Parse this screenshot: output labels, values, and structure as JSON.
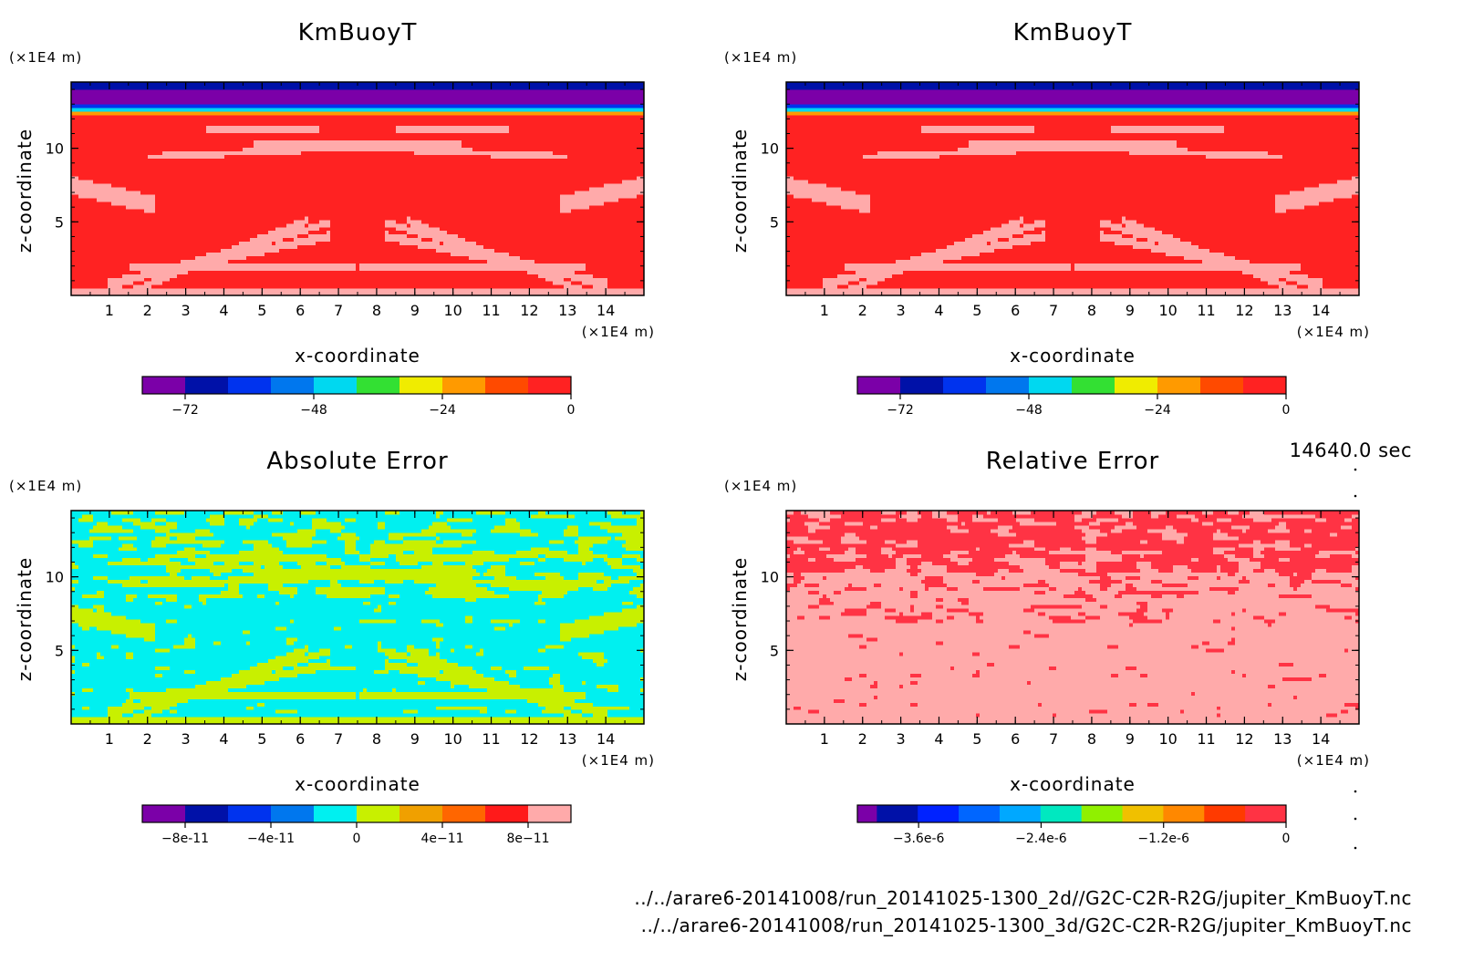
{
  "timestamp": "14640.0 sec",
  "files": [
    "../../arare6-20141008/run_20141025-1300_2d//G2C-C2R-R2G/jupiter_KmBuoyT.nc",
    "../../arare6-20141008/run_20141025-1300_3d/G2C-C2R-R2G/jupiter_KmBuoyT.nc"
  ],
  "chart_data": [
    {
      "type": "heatmap",
      "title": "KmBuoyT",
      "xlabel": "x-coordinate",
      "ylabel": "z-coordinate",
      "x_unit": "(×1E4 m)",
      "y_unit": "(×1E4 m)",
      "xlim": [
        0,
        15
      ],
      "ylim": [
        0,
        14.5
      ],
      "x_ticks": [
        "1",
        "2",
        "3",
        "4",
        "5",
        "6",
        "7",
        "8",
        "9",
        "10",
        "11",
        "12",
        "13",
        "14"
      ],
      "y_ticks": [
        "5",
        "10"
      ],
      "colorbar": {
        "colors": [
          "#7b00a8",
          "#0011a8",
          "#0033ee",
          "#0077ee",
          "#00d8f0",
          "#33e033",
          "#f0ec00",
          "#ff9a00",
          "#ff4a00",
          "#ff2222"
        ],
        "tick_labels": [
          "-72",
          "-48",
          "-24",
          "0"
        ],
        "range": [
          -80,
          0
        ]
      },
      "field": "kmbuoy"
    },
    {
      "type": "heatmap",
      "title": "KmBuoyT",
      "xlabel": "x-coordinate",
      "ylabel": "z-coordinate",
      "x_unit": "(×1E4 m)",
      "y_unit": "(×1E4 m)",
      "xlim": [
        0,
        15
      ],
      "ylim": [
        0,
        14.5
      ],
      "x_ticks": [
        "1",
        "2",
        "3",
        "4",
        "5",
        "6",
        "7",
        "8",
        "9",
        "10",
        "11",
        "12",
        "13",
        "14"
      ],
      "y_ticks": [
        "5",
        "10"
      ],
      "colorbar": {
        "colors": [
          "#7b00a8",
          "#0011a8",
          "#0033ee",
          "#0077ee",
          "#00d8f0",
          "#33e033",
          "#f0ec00",
          "#ff9a00",
          "#ff4a00",
          "#ff2222"
        ],
        "tick_labels": [
          "-72",
          "-48",
          "-24",
          "0"
        ],
        "range": [
          -80,
          0
        ]
      },
      "field": "kmbuoy"
    },
    {
      "type": "heatmap",
      "title": "Absolute Error",
      "xlabel": "x-coordinate",
      "ylabel": "z-coordinate",
      "x_unit": "(×1E4 m)",
      "y_unit": "(×1E4 m)",
      "xlim": [
        0,
        15
      ],
      "ylim": [
        0,
        14.5
      ],
      "x_ticks": [
        "1",
        "2",
        "3",
        "4",
        "5",
        "6",
        "7",
        "8",
        "9",
        "10",
        "11",
        "12",
        "13",
        "14"
      ],
      "y_ticks": [
        "5",
        "10"
      ],
      "colorbar": {
        "colors": [
          "#7b00a8",
          "#0011a8",
          "#0033ee",
          "#0077ee",
          "#00f0f0",
          "#c8f000",
          "#f0a000",
          "#ff6600",
          "#ff1a1a",
          "#ffaaaa"
        ],
        "tick_labels": [
          "-8e-11",
          "-4e-11",
          "0",
          "4e-11",
          "8e-11"
        ],
        "range": [
          -1e-10,
          1e-10
        ]
      },
      "field": "abserr"
    },
    {
      "type": "heatmap",
      "title": "Relative Error",
      "xlabel": "x-coordinate",
      "ylabel": "z-coordinate",
      "x_unit": "(×1E4 m)",
      "y_unit": "(×1E4 m)",
      "xlim": [
        0,
        15
      ],
      "ylim": [
        0,
        14.5
      ],
      "x_ticks": [
        "1",
        "2",
        "3",
        "4",
        "5",
        "6",
        "7",
        "8",
        "9",
        "10",
        "11",
        "12",
        "13",
        "14"
      ],
      "y_ticks": [
        "5",
        "10"
      ],
      "colorbar": {
        "colors": [
          "#7b00a8",
          "#0011a8",
          "#0022ff",
          "#0066ff",
          "#00a8ff",
          "#00e8c0",
          "#90f000",
          "#f0c000",
          "#ff8800",
          "#ff3a00",
          "#ff3344"
        ],
        "tick_labels": [
          "-3.6e-6",
          "-2.4e-6",
          "-1.2e-6",
          "0"
        ],
        "range": [
          -4.2e-06,
          0
        ]
      },
      "field": "relerr"
    }
  ]
}
